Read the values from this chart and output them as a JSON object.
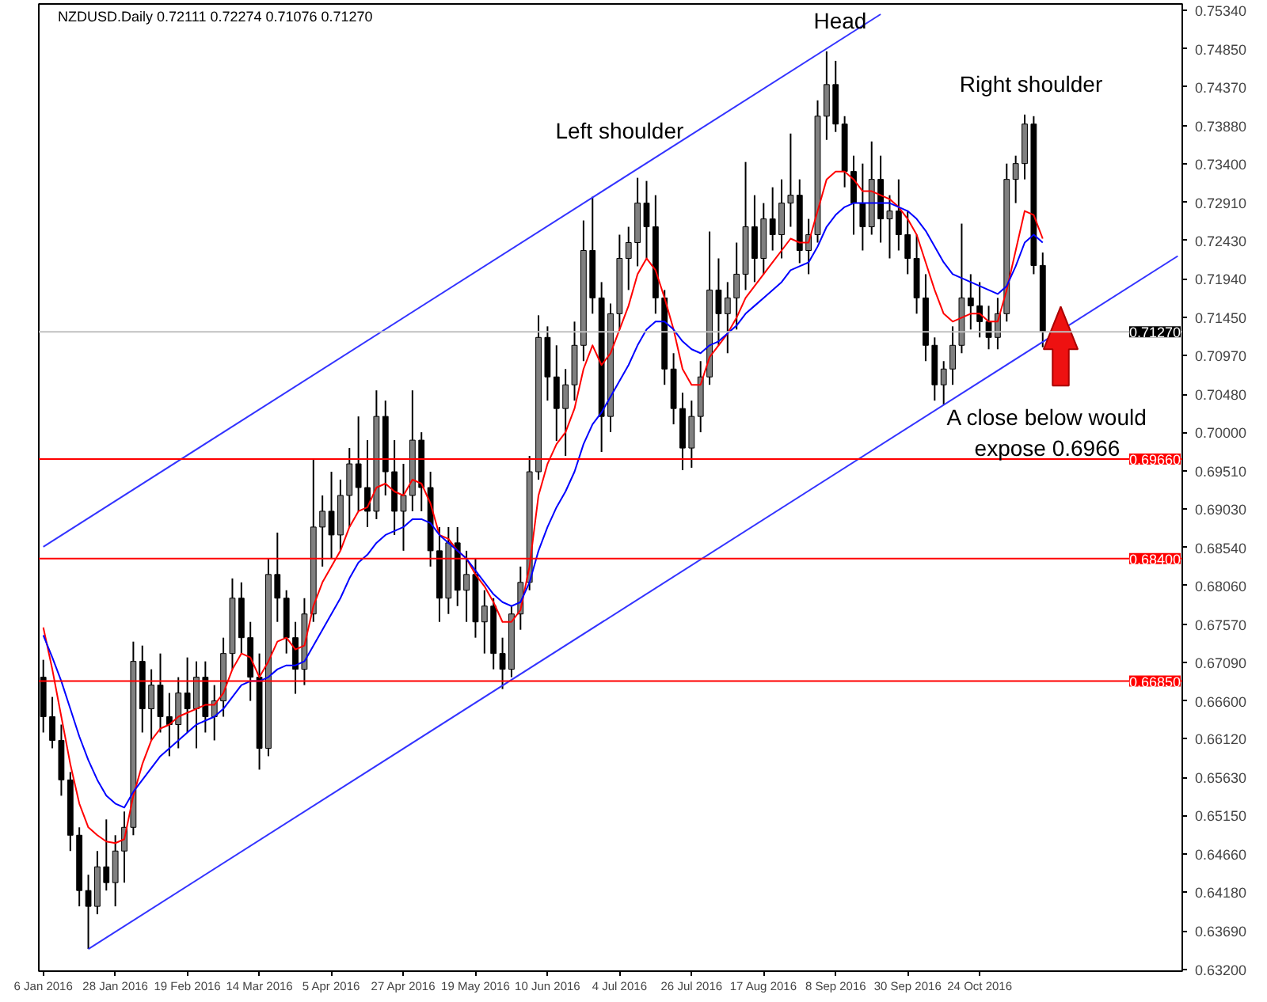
{
  "chart_data": {
    "type": "candlestick",
    "title": "NZDUSD.Daily  0.72111 0.72274 0.71076 0.71270",
    "categories": [
      "6 Jan 2016",
      null,
      null,
      null,
      null,
      null,
      null,
      null,
      "28 Jan 2016",
      null,
      null,
      null,
      null,
      null,
      null,
      null,
      "19 Feb 2016",
      null,
      null,
      null,
      null,
      null,
      null,
      null,
      "14 Mar 2016",
      null,
      null,
      null,
      null,
      null,
      null,
      null,
      "5 Apr 2016",
      null,
      null,
      null,
      null,
      null,
      null,
      null,
      "27 Apr 2016",
      null,
      null,
      null,
      null,
      null,
      null,
      null,
      "19 May 2016",
      null,
      null,
      null,
      null,
      null,
      null,
      null,
      "10 Jun 2016",
      null,
      null,
      null,
      null,
      null,
      null,
      null,
      "4 Jul 2016",
      null,
      null,
      null,
      null,
      null,
      null,
      null,
      "26 Jul 2016",
      null,
      null,
      null,
      null,
      null,
      null,
      null,
      "17 Aug 2016",
      null,
      null,
      null,
      null,
      null,
      null,
      null,
      "8 Sep 2016",
      null,
      null,
      null,
      null,
      null,
      null,
      null,
      "30 Sep 2016",
      null,
      null,
      null,
      null,
      null,
      null,
      null,
      "24 Oct 2016",
      null,
      null,
      null,
      null,
      null,
      null,
      null,
      null,
      null,
      null,
      null,
      null,
      null,
      null,
      null,
      null,
      null,
      null,
      null,
      null,
      null,
      null
    ],
    "ohlc": [
      [
        0.669,
        0.6712,
        0.662,
        0.664
      ],
      [
        0.664,
        0.6665,
        0.66,
        0.661
      ],
      [
        0.661,
        0.663,
        0.654,
        0.656
      ],
      [
        0.656,
        0.657,
        0.647,
        0.649
      ],
      [
        0.649,
        0.65,
        0.64,
        0.642
      ],
      [
        0.642,
        0.644,
        0.6346,
        0.64
      ],
      [
        0.64,
        0.647,
        0.639,
        0.645
      ],
      [
        0.645,
        0.651,
        0.642,
        0.643
      ],
      [
        0.643,
        0.649,
        0.64,
        0.647
      ],
      [
        0.647,
        0.652,
        0.643,
        0.65
      ],
      [
        0.65,
        0.6735,
        0.649,
        0.671
      ],
      [
        0.671,
        0.673,
        0.662,
        0.665
      ],
      [
        0.665,
        0.67,
        0.661,
        0.668
      ],
      [
        0.668,
        0.672,
        0.662,
        0.664
      ],
      [
        0.664,
        0.667,
        0.659,
        0.663
      ],
      [
        0.663,
        0.669,
        0.66,
        0.667
      ],
      [
        0.667,
        0.6715,
        0.662,
        0.665
      ],
      [
        0.665,
        0.671,
        0.66,
        0.669
      ],
      [
        0.669,
        0.671,
        0.662,
        0.664
      ],
      [
        0.664,
        0.668,
        0.661,
        0.666
      ],
      [
        0.666,
        0.674,
        0.664,
        0.672
      ],
      [
        0.672,
        0.6815,
        0.67,
        0.679
      ],
      [
        0.679,
        0.681,
        0.672,
        0.674
      ],
      [
        0.674,
        0.676,
        0.666,
        0.669
      ],
      [
        0.669,
        0.672,
        0.6573,
        0.66
      ],
      [
        0.66,
        0.684,
        0.659,
        0.682
      ],
      [
        0.682,
        0.6873,
        0.676,
        0.679
      ],
      [
        0.679,
        0.68,
        0.672,
        0.674
      ],
      [
        0.674,
        0.676,
        0.6669,
        0.67
      ],
      [
        0.67,
        0.679,
        0.668,
        0.677
      ],
      [
        0.677,
        0.6966,
        0.676,
        0.688
      ],
      [
        0.688,
        0.692,
        0.683,
        0.69
      ],
      [
        0.69,
        0.695,
        0.684,
        0.687
      ],
      [
        0.687,
        0.694,
        0.685,
        0.692
      ],
      [
        0.692,
        0.698,
        0.688,
        0.696
      ],
      [
        0.696,
        0.702,
        0.69,
        0.693
      ],
      [
        0.693,
        0.699,
        0.688,
        0.69
      ],
      [
        0.69,
        0.7053,
        0.689,
        0.702
      ],
      [
        0.702,
        0.704,
        0.692,
        0.695
      ],
      [
        0.695,
        0.699,
        0.687,
        0.69
      ],
      [
        0.69,
        0.696,
        0.685,
        0.692
      ],
      [
        0.692,
        0.7053,
        0.69,
        0.699
      ],
      [
        0.699,
        0.7,
        0.69,
        0.693
      ],
      [
        0.693,
        0.695,
        0.683,
        0.685
      ],
      [
        0.685,
        0.688,
        0.676,
        0.679
      ],
      [
        0.679,
        0.688,
        0.677,
        0.686
      ],
      [
        0.686,
        0.688,
        0.678,
        0.68
      ],
      [
        0.68,
        0.685,
        0.676,
        0.682
      ],
      [
        0.682,
        0.684,
        0.674,
        0.676
      ],
      [
        0.676,
        0.68,
        0.672,
        0.678
      ],
      [
        0.678,
        0.679,
        0.67,
        0.672
      ],
      [
        0.672,
        0.674,
        0.6675,
        0.67
      ],
      [
        0.67,
        0.678,
        0.669,
        0.677
      ],
      [
        0.677,
        0.683,
        0.675,
        0.681
      ],
      [
        0.681,
        0.697,
        0.68,
        0.695
      ],
      [
        0.695,
        0.7148,
        0.694,
        0.712
      ],
      [
        0.712,
        0.7134,
        0.704,
        0.707
      ],
      [
        0.707,
        0.711,
        0.6989,
        0.703
      ],
      [
        0.703,
        0.708,
        0.697,
        0.706
      ],
      [
        0.706,
        0.714,
        0.704,
        0.711
      ],
      [
        0.711,
        0.7268,
        0.709,
        0.723
      ],
      [
        0.723,
        0.7298,
        0.715,
        0.717
      ],
      [
        0.717,
        0.719,
        0.6975,
        0.702
      ],
      [
        0.702,
        0.7163,
        0.7,
        0.715
      ],
      [
        0.715,
        0.725,
        0.713,
        0.722
      ],
      [
        0.722,
        0.726,
        0.718,
        0.724
      ],
      [
        0.724,
        0.7322,
        0.721,
        0.729
      ],
      [
        0.729,
        0.7318,
        0.722,
        0.726
      ],
      [
        0.726,
        0.73,
        0.715,
        0.717
      ],
      [
        0.717,
        0.718,
        0.706,
        0.708
      ],
      [
        0.708,
        0.71,
        0.701,
        0.703
      ],
      [
        0.703,
        0.705,
        0.6952,
        0.698
      ],
      [
        0.698,
        0.704,
        0.6955,
        0.702
      ],
      [
        0.702,
        0.709,
        0.7,
        0.707
      ],
      [
        0.707,
        0.7254,
        0.706,
        0.718
      ],
      [
        0.718,
        0.722,
        0.711,
        0.715
      ],
      [
        0.715,
        0.719,
        0.71,
        0.717
      ],
      [
        0.717,
        0.724,
        0.713,
        0.72
      ],
      [
        0.72,
        0.7342,
        0.718,
        0.726
      ],
      [
        0.726,
        0.73,
        0.719,
        0.722
      ],
      [
        0.722,
        0.729,
        0.72,
        0.727
      ],
      [
        0.727,
        0.731,
        0.723,
        0.725
      ],
      [
        0.725,
        0.732,
        0.722,
        0.729
      ],
      [
        0.729,
        0.7378,
        0.726,
        0.73
      ],
      [
        0.73,
        0.732,
        0.7214,
        0.723
      ],
      [
        0.723,
        0.727,
        0.72,
        0.725
      ],
      [
        0.725,
        0.742,
        0.724,
        0.74
      ],
      [
        0.74,
        0.7482,
        0.737,
        0.744
      ],
      [
        0.744,
        0.747,
        0.738,
        0.739
      ],
      [
        0.739,
        0.74,
        0.731,
        0.733
      ],
      [
        0.733,
        0.735,
        0.725,
        0.729
      ],
      [
        0.729,
        0.734,
        0.723,
        0.726
      ],
      [
        0.726,
        0.7368,
        0.725,
        0.732
      ],
      [
        0.732,
        0.735,
        0.724,
        0.727
      ],
      [
        0.727,
        0.73,
        0.722,
        0.728
      ],
      [
        0.728,
        0.732,
        0.723,
        0.725
      ],
      [
        0.725,
        0.728,
        0.72,
        0.722
      ],
      [
        0.722,
        0.725,
        0.715,
        0.717
      ],
      [
        0.717,
        0.72,
        0.709,
        0.711
      ],
      [
        0.711,
        0.712,
        0.704,
        0.706
      ],
      [
        0.706,
        0.709,
        0.7035,
        0.708
      ],
      [
        0.708,
        0.7134,
        0.706,
        0.711
      ],
      [
        0.711,
        0.7264,
        0.71,
        0.717
      ],
      [
        0.717,
        0.72,
        0.713,
        0.716
      ],
      [
        0.716,
        0.719,
        0.712,
        0.714
      ],
      [
        0.714,
        0.716,
        0.7105,
        0.712
      ],
      [
        0.712,
        0.717,
        0.7105,
        0.715
      ],
      [
        0.715,
        0.734,
        0.714,
        0.732
      ],
      [
        0.732,
        0.735,
        0.729,
        0.734
      ],
      [
        0.734,
        0.7402,
        0.732,
        0.739
      ],
      [
        0.739,
        0.74,
        0.72,
        0.7211
      ],
      [
        0.72111,
        0.72274,
        0.71076,
        0.7127
      ],
      null,
      null,
      null,
      null,
      null,
      null,
      null,
      null,
      null,
      null,
      null,
      null,
      null,
      null,
      null
    ],
    "series": [
      {
        "type": "line",
        "color": "#ff0000",
        "values": [
          0.6753,
          0.67,
          0.664,
          0.658,
          0.653,
          0.65,
          0.649,
          0.6482,
          0.648,
          0.6485,
          0.654,
          0.658,
          0.661,
          0.6625,
          0.663,
          0.664,
          0.6645,
          0.665,
          0.6655,
          0.6655,
          0.667,
          0.67,
          0.672,
          0.6715,
          0.669,
          0.671,
          0.6735,
          0.674,
          0.6725,
          0.673,
          0.678,
          0.681,
          0.683,
          0.685,
          0.688,
          0.69,
          0.6905,
          0.693,
          0.6935,
          0.6925,
          0.692,
          0.694,
          0.6935,
          0.691,
          0.687,
          0.6865,
          0.685,
          0.684,
          0.682,
          0.6805,
          0.6785,
          0.676,
          0.676,
          0.6775,
          0.683,
          0.692,
          0.696,
          0.6985,
          0.7,
          0.703,
          0.708,
          0.711,
          0.7085,
          0.71,
          0.713,
          0.716,
          0.72,
          0.722,
          0.7205,
          0.717,
          0.713,
          0.708,
          0.706,
          0.706,
          0.7095,
          0.711,
          0.7125,
          0.7145,
          0.717,
          0.7185,
          0.72,
          0.7215,
          0.723,
          0.7245,
          0.724,
          0.724,
          0.728,
          0.732,
          0.733,
          0.733,
          0.732,
          0.7305,
          0.7305,
          0.73,
          0.7295,
          0.7285,
          0.727,
          0.725,
          0.7215,
          0.718,
          0.715,
          0.714,
          0.7145,
          0.715,
          0.715,
          0.714,
          0.714,
          0.718,
          0.723,
          0.728,
          0.7275,
          0.7245,
          null,
          null,
          null,
          null,
          null,
          null,
          null,
          null,
          null,
          null,
          null,
          null,
          null,
          null,
          null
        ]
      },
      {
        "type": "line",
        "color": "#0000ff",
        "values": [
          0.6743,
          0.6715,
          0.6685,
          0.665,
          0.6615,
          0.6585,
          0.656,
          0.654,
          0.653,
          0.6525,
          0.6545,
          0.656,
          0.6575,
          0.659,
          0.66,
          0.661,
          0.662,
          0.663,
          0.6635,
          0.664,
          0.665,
          0.6665,
          0.668,
          0.6685,
          0.6685,
          0.669,
          0.67,
          0.6705,
          0.6705,
          0.671,
          0.673,
          0.675,
          0.677,
          0.679,
          0.6815,
          0.6835,
          0.6845,
          0.686,
          0.687,
          0.6875,
          0.688,
          0.689,
          0.689,
          0.6885,
          0.687,
          0.686,
          0.685,
          0.684,
          0.6825,
          0.681,
          0.6795,
          0.6785,
          0.678,
          0.6785,
          0.681,
          0.685,
          0.688,
          0.6905,
          0.6925,
          0.695,
          0.6985,
          0.701,
          0.7025,
          0.7045,
          0.7065,
          0.7085,
          0.711,
          0.713,
          0.714,
          0.714,
          0.713,
          0.7115,
          0.7105,
          0.71,
          0.711,
          0.7115,
          0.7125,
          0.7135,
          0.715,
          0.716,
          0.717,
          0.718,
          0.719,
          0.7205,
          0.721,
          0.7215,
          0.7235,
          0.726,
          0.7275,
          0.7285,
          0.729,
          0.729,
          0.729,
          0.729,
          0.729,
          0.7285,
          0.728,
          0.727,
          0.7255,
          0.7235,
          0.7215,
          0.72,
          0.7195,
          0.719,
          0.7185,
          0.718,
          0.7175,
          0.7185,
          0.721,
          0.724,
          0.725,
          0.724,
          null,
          null,
          null,
          null,
          null,
          null,
          null,
          null,
          null,
          null,
          null,
          null,
          null,
          null,
          null
        ]
      },
      {
        "type": "line",
        "color": "#3333ff",
        "values": [
          0.6855,
          null,
          null,
          null,
          null,
          null,
          null,
          null,
          null,
          null,
          null,
          null,
          null,
          null,
          null,
          null,
          null,
          null,
          null,
          null,
          null,
          null,
          null,
          null,
          null,
          null,
          null,
          null,
          null,
          null,
          null,
          null,
          null,
          null,
          null,
          null,
          null,
          null,
          null,
          null,
          null,
          null,
          null,
          null,
          null,
          null,
          null,
          null,
          null,
          null,
          null,
          null,
          null,
          null,
          null,
          null,
          null,
          null,
          null,
          null,
          null,
          null,
          null,
          null,
          null,
          null,
          null,
          null,
          null,
          null,
          null,
          null,
          null,
          null,
          null,
          null,
          null,
          null,
          null,
          null,
          null,
          null,
          null,
          null,
          null,
          null,
          null,
          null,
          null,
          null,
          null,
          null,
          null,
          0.7529,
          null,
          null,
          null,
          null,
          null,
          null,
          null,
          null,
          null,
          null,
          null,
          null,
          null,
          null,
          null,
          null,
          null,
          null,
          null,
          null,
          null,
          null,
          null,
          null,
          null,
          null,
          null,
          null,
          null,
          null,
          null,
          null,
          null
        ]
      },
      {
        "type": "line",
        "color": "#3333ff",
        "values": [
          null,
          null,
          null,
          null,
          null,
          0.6346,
          null,
          null,
          null,
          null,
          null,
          null,
          null,
          null,
          null,
          null,
          null,
          null,
          null,
          null,
          null,
          null,
          null,
          null,
          null,
          null,
          null,
          null,
          null,
          null,
          null,
          null,
          null,
          null,
          null,
          null,
          null,
          null,
          null,
          null,
          null,
          null,
          null,
          null,
          null,
          null,
          null,
          null,
          null,
          null,
          null,
          null,
          null,
          null,
          null,
          null,
          null,
          null,
          null,
          null,
          null,
          null,
          null,
          null,
          null,
          null,
          null,
          null,
          null,
          null,
          null,
          null,
          null,
          null,
          null,
          null,
          null,
          null,
          null,
          null,
          null,
          null,
          null,
          null,
          null,
          null,
          null,
          null,
          null,
          null,
          null,
          null,
          null,
          null,
          null,
          null,
          null,
          null,
          null,
          null,
          null,
          null,
          null,
          null,
          null,
          null,
          null,
          null,
          null,
          null,
          null,
          null,
          null,
          null,
          null,
          null,
          null,
          null,
          null,
          null,
          null,
          null,
          null,
          null,
          null,
          null,
          0.7223
        ]
      }
    ],
    "ref_lines": [
      {
        "axis": "y",
        "value": 0.7127,
        "label": "0.71270",
        "color": "#c0c0c0"
      },
      {
        "axis": "y",
        "value": 0.6966,
        "label": "0.69660",
        "color": "#ff0000"
      },
      {
        "axis": "y",
        "value": 0.684,
        "label": "0.68400",
        "color": "#ff0000"
      },
      {
        "axis": "y",
        "value": 0.6685,
        "label": "0.66850",
        "color": "#ff0000"
      }
    ],
    "annotations": [
      "Head",
      "Left shoulder",
      "Right shoulder",
      "A close below would\nexpose 0.6966"
    ],
    "ylim": [
      0.6318,
      0.7542
    ],
    "yticks": [
      {
        "value": 0.7534,
        "label": "0.75340"
      },
      {
        "value": 0.7485,
        "label": "0.74850"
      },
      {
        "value": 0.7437,
        "label": "0.74370"
      },
      {
        "value": 0.7388,
        "label": "0.73880"
      },
      {
        "value": 0.734,
        "label": "0.73400"
      },
      {
        "value": 0.7291,
        "label": "0.72910"
      },
      {
        "value": 0.7243,
        "label": "0.72430"
      },
      {
        "value": 0.7194,
        "label": "0.71940"
      },
      {
        "value": 0.7145,
        "label": "0.71450"
      },
      {
        "value": 0.7097,
        "label": "0.70970"
      },
      {
        "value": 0.7048,
        "label": "0.70480"
      },
      {
        "value": 0.7,
        "label": "0.70000"
      },
      {
        "value": 0.6951,
        "label": "0.69510"
      },
      {
        "value": 0.6903,
        "label": "0.69030"
      },
      {
        "value": 0.6854,
        "label": "0.68540"
      },
      {
        "value": 0.6806,
        "label": "0.68060"
      },
      {
        "value": 0.6757,
        "label": "0.67570"
      },
      {
        "value": 0.6709,
        "label": "0.67090"
      },
      {
        "value": 0.666,
        "label": "0.66600"
      },
      {
        "value": 0.6612,
        "label": "0.66120"
      },
      {
        "value": 0.6563,
        "label": "0.65630"
      },
      {
        "value": 0.6515,
        "label": "0.65150"
      },
      {
        "value": 0.6466,
        "label": "0.64660"
      },
      {
        "value": 0.6418,
        "label": "0.64180"
      },
      {
        "value": 0.6369,
        "label": "0.63690"
      },
      {
        "value": 0.632,
        "label": "0.63200"
      }
    ],
    "grid": false
  }
}
